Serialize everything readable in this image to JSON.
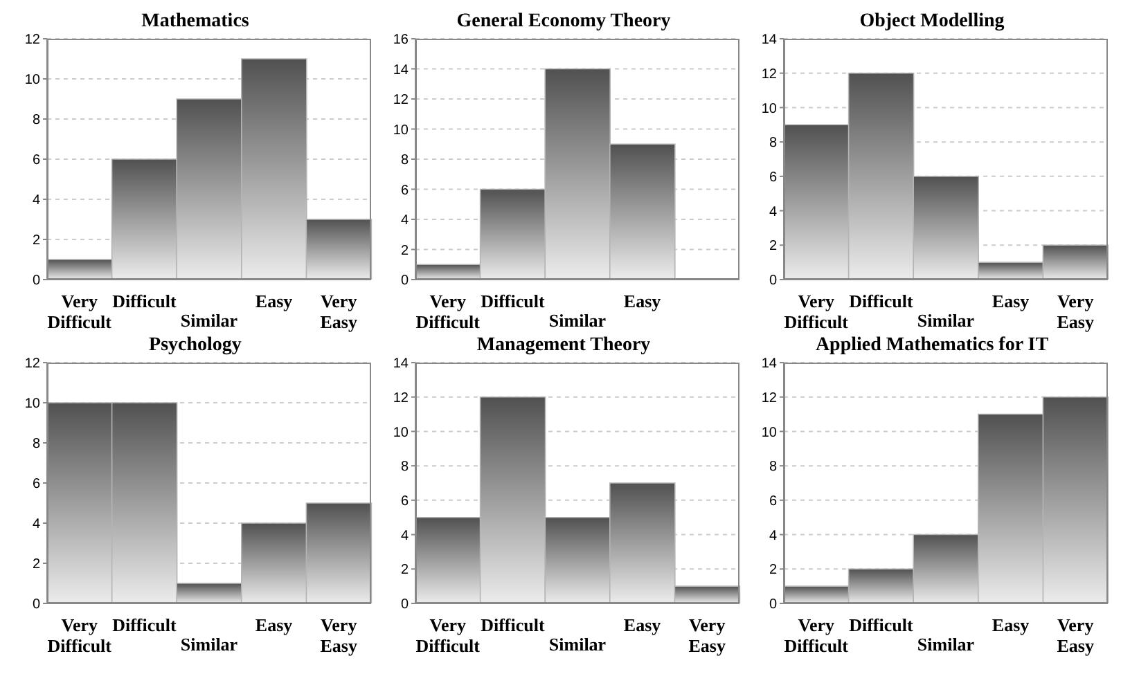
{
  "chart_data": [
    {
      "type": "bar",
      "title": "Mathematics",
      "categories": [
        "Very Difficult",
        "Difficult",
        "Similar",
        "Easy",
        "Very Easy"
      ],
      "values": [
        1,
        6,
        9,
        11,
        3
      ],
      "color": "#b4b4b4",
      "ylim": [
        0,
        12
      ],
      "yticks": [
        0,
        2,
        4,
        6,
        8,
        10,
        12
      ],
      "grid": "y"
    },
    {
      "type": "bar",
      "title": "General Economy Theory",
      "categories": [
        "Very Difficult",
        "Difficult",
        "Similar",
        "Easy",
        null
      ],
      "values": [
        1,
        6,
        14,
        9,
        null
      ],
      "color": "#b4b4b4",
      "ylim": [
        0,
        16
      ],
      "yticks": [
        0,
        2,
        4,
        6,
        8,
        10,
        12,
        14,
        16
      ],
      "grid": "y"
    },
    {
      "type": "bar",
      "title": "Object Modelling",
      "categories": [
        "Very Difficult",
        "Difficult",
        "Similar",
        "Easy",
        "Very Easy"
      ],
      "values": [
        9,
        12,
        6,
        1,
        2
      ],
      "color": "#b4b4b4",
      "ylim": [
        0,
        14
      ],
      "yticks": [
        0,
        2,
        4,
        6,
        8,
        10,
        12,
        14
      ],
      "grid": "y"
    },
    {
      "type": "bar",
      "title": "Psychology",
      "categories": [
        "Very Difficult",
        "Difficult",
        "Similar",
        "Easy",
        "Very Easy"
      ],
      "values": [
        10,
        10,
        1,
        4,
        5
      ],
      "color": "#b4b4b4",
      "ylim": [
        0,
        12
      ],
      "yticks": [
        0,
        2,
        4,
        6,
        8,
        10,
        12
      ],
      "grid": "y"
    },
    {
      "type": "bar",
      "title": "Management Theory",
      "categories": [
        "Very Difficult",
        "Difficult",
        "Similar",
        "Easy",
        "Very Easy"
      ],
      "values": [
        5,
        12,
        5,
        7,
        1
      ],
      "color": "#b4b4b4",
      "ylim": [
        0,
        14
      ],
      "yticks": [
        0,
        2,
        4,
        6,
        8,
        10,
        12,
        14
      ],
      "grid": "y"
    },
    {
      "type": "bar",
      "title": "Applied Mathematics for IT",
      "categories": [
        "Very Difficult",
        "Difficult",
        "Similar",
        "Easy",
        "Very Easy"
      ],
      "values": [
        1,
        2,
        4,
        11,
        12
      ],
      "color": "#b4b4b4",
      "ylim": [
        0,
        14
      ],
      "yticks": [
        0,
        2,
        4,
        6,
        8,
        10,
        12,
        14
      ],
      "grid": "y"
    }
  ]
}
